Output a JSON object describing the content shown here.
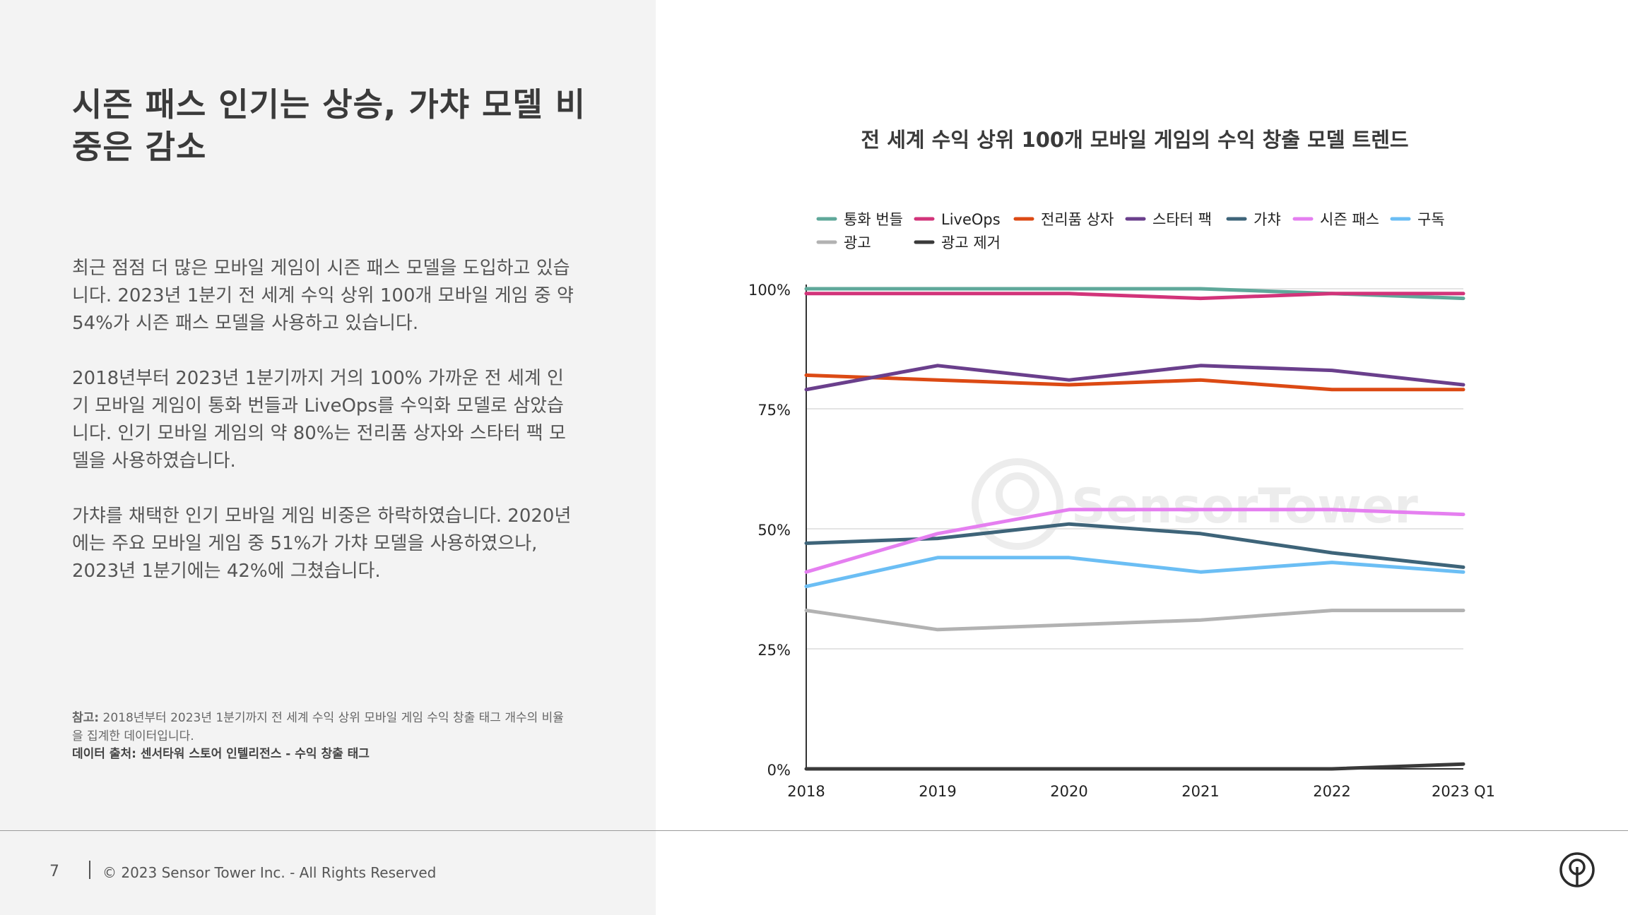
{
  "slide": {
    "title": "시즌 패스 인기는 상승, 가챠 모델 비중은 감소",
    "paragraphs": [
      "최근 점점 더 많은 모바일 게임이 시즌 패스 모델을 도입하고 있습니다. 2023년 1분기 전 세계 수익 상위 100개 모바일 게임 중 약 54%가 시즌 패스 모델을 사용하고 있습니다.",
      "2018년부터 2023년 1분기까지 거의 100% 가까운 전 세계 인기 모바일 게임이 통화 번들과 LiveOps를 수익화 모델로 삼았습니다. 인기 모바일 게임의 약 80%는 전리품 상자와 스타터 팩 모델을 사용하였습니다.",
      "가챠를 채택한 인기 모바일 게임 비중은 하락하였습니다. 2020년에는 주요 모바일 게임 중 51%가 가챠 모델을 사용하였으나, 2023년 1분기에는 42%에 그쳤습니다."
    ],
    "note_label": "참고:",
    "note_text": " 2018년부터 2023년 1분기까지 전 세계 수익 상위 모바일 게임 수익 창출 태그 개수의 비율을 집계한 데이터입니다.",
    "source_text": "데이터 출처: 센서타워 스토어 인텔리전스 - 수익 창출 태그"
  },
  "footer": {
    "page_number": "7",
    "copyright": "© 2023 Sensor Tower Inc. - All Rights Reserved",
    "logo_icon": "sensor-tower-logo-icon"
  },
  "chart_data": {
    "type": "line",
    "title": "전 세계 수익 상위 100개 모바일 게임의 수익 창출 모델 트렌드",
    "xlabel": "",
    "ylabel": "",
    "categories": [
      "2018",
      "2019",
      "2020",
      "2021",
      "2022",
      "2023 Q1"
    ],
    "ylim": [
      0,
      100
    ],
    "yticks": [
      0,
      25,
      50,
      75,
      100
    ],
    "ytick_labels": [
      "0%",
      "25%",
      "50%",
      "75%",
      "100%"
    ],
    "grid": true,
    "legend_position": "top",
    "watermark": "SensorTower",
    "series": [
      {
        "name": "통화 번들",
        "color": "#5fa89a",
        "values": [
          100,
          100,
          100,
          100,
          99,
          98
        ]
      },
      {
        "name": "LiveOps",
        "color": "#d2347a",
        "values": [
          99,
          99,
          99,
          98,
          99,
          99
        ]
      },
      {
        "name": "전리품 상자",
        "color": "#dc4a14",
        "values": [
          82,
          81,
          80,
          81,
          79,
          79
        ]
      },
      {
        "name": "스타터 팩",
        "color": "#6a3f8c",
        "values": [
          79,
          84,
          81,
          84,
          83,
          80
        ]
      },
      {
        "name": "가챠",
        "color": "#3e6479",
        "values": [
          47,
          48,
          51,
          49,
          45,
          42
        ]
      },
      {
        "name": "시즌 패스",
        "color": "#e57ff0",
        "values": [
          41,
          49,
          54,
          54,
          54,
          53
        ]
      },
      {
        "name": "구독",
        "color": "#6bbef4",
        "values": [
          38,
          44,
          44,
          41,
          43,
          41
        ]
      },
      {
        "name": "광고",
        "color": "#b2b2b2",
        "values": [
          33,
          29,
          30,
          31,
          33,
          33
        ]
      },
      {
        "name": "광고 제거",
        "color": "#3a3a3a",
        "values": [
          0,
          0,
          0,
          0,
          0,
          1
        ]
      }
    ]
  }
}
